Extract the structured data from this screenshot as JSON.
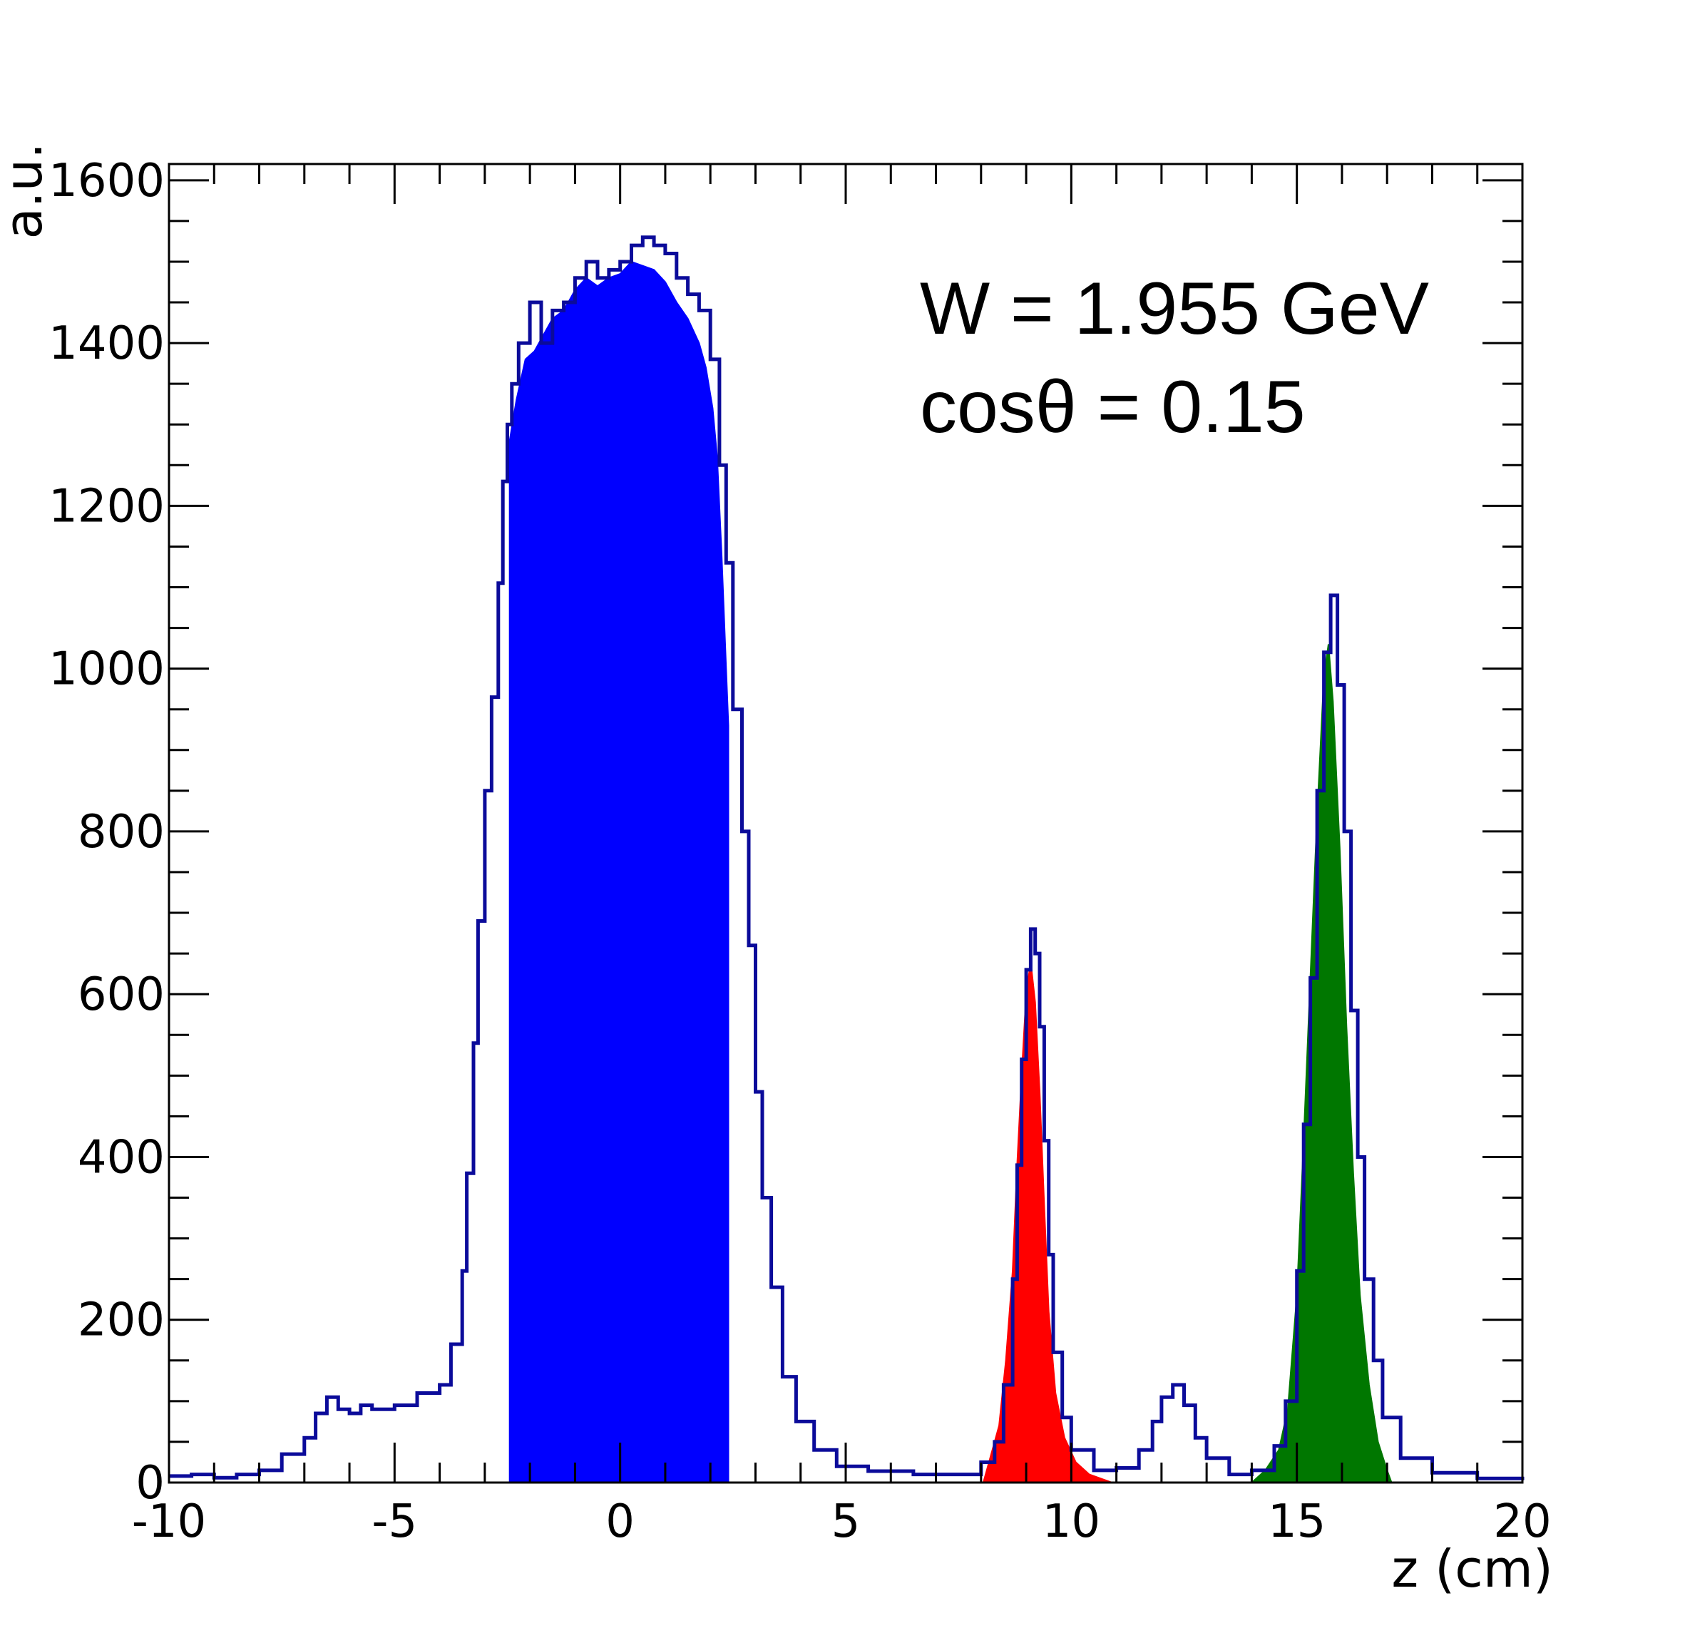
{
  "chart_data": {
    "type": "histogram",
    "xlabel": "z (cm)",
    "ylabel": "a.u.",
    "xlim": [
      -10,
      20
    ],
    "ylim": [
      0,
      1620
    ],
    "x_ticks": [
      -10,
      -5,
      0,
      5,
      10,
      15,
      20
    ],
    "y_ticks": [
      0,
      200,
      400,
      600,
      800,
      1000,
      1200,
      1400,
      1600
    ],
    "annotations": [
      "W = 1.955 GeV",
      "cosθ = 0.15"
    ],
    "colors": {
      "outline": "#0b0b9a",
      "target_fill": "#0000ff",
      "foil1_fill": "#ff0000",
      "foil2_fill": "#007700"
    },
    "series": [
      {
        "key": "total",
        "style": "step-outline",
        "color": "#0b0b9a",
        "points": [
          [
            -10,
            8
          ],
          [
            -9.5,
            10
          ],
          [
            -9,
            6
          ],
          [
            -8.5,
            10
          ],
          [
            -8,
            15
          ],
          [
            -7.5,
            35
          ],
          [
            -7,
            55
          ],
          [
            -6.75,
            85
          ],
          [
            -6.5,
            105
          ],
          [
            -6.25,
            90
          ],
          [
            -6,
            85
          ],
          [
            -5.75,
            95
          ],
          [
            -5.5,
            90
          ],
          [
            -5,
            95
          ],
          [
            -4.5,
            110
          ],
          [
            -4,
            120
          ],
          [
            -3.75,
            170
          ],
          [
            -3.5,
            260
          ],
          [
            -3.4,
            380
          ],
          [
            -3.25,
            540
          ],
          [
            -3.15,
            690
          ],
          [
            -3.0,
            850
          ],
          [
            -2.85,
            965
          ],
          [
            -2.7,
            1105
          ],
          [
            -2.6,
            1230
          ],
          [
            -2.5,
            1300
          ],
          [
            -2.4,
            1350
          ],
          [
            -2.25,
            1400
          ],
          [
            -2.0,
            1450
          ],
          [
            -1.75,
            1400
          ],
          [
            -1.5,
            1440
          ],
          [
            -1.25,
            1450
          ],
          [
            -1.0,
            1480
          ],
          [
            -0.75,
            1500
          ],
          [
            -0.5,
            1480
          ],
          [
            -0.25,
            1490
          ],
          [
            0,
            1500
          ],
          [
            0.25,
            1520
          ],
          [
            0.5,
            1530
          ],
          [
            0.75,
            1520
          ],
          [
            1.0,
            1510
          ],
          [
            1.25,
            1480
          ],
          [
            1.5,
            1460
          ],
          [
            1.75,
            1440
          ],
          [
            2.0,
            1380
          ],
          [
            2.2,
            1250
          ],
          [
            2.35,
            1130
          ],
          [
            2.5,
            950
          ],
          [
            2.7,
            800
          ],
          [
            2.85,
            660
          ],
          [
            3.0,
            480
          ],
          [
            3.15,
            350
          ],
          [
            3.35,
            240
          ],
          [
            3.6,
            130
          ],
          [
            3.9,
            75
          ],
          [
            4.3,
            40
          ],
          [
            4.8,
            20
          ],
          [
            5.5,
            14
          ],
          [
            6.5,
            10
          ],
          [
            7.5,
            10
          ],
          [
            8,
            25
          ],
          [
            8.3,
            50
          ],
          [
            8.5,
            120
          ],
          [
            8.7,
            250
          ],
          [
            8.8,
            390
          ],
          [
            8.9,
            520
          ],
          [
            9.0,
            630
          ],
          [
            9.1,
            680
          ],
          [
            9.2,
            650
          ],
          [
            9.3,
            560
          ],
          [
            9.4,
            420
          ],
          [
            9.5,
            280
          ],
          [
            9.6,
            160
          ],
          [
            9.8,
            80
          ],
          [
            10.0,
            40
          ],
          [
            10.5,
            15
          ],
          [
            11,
            18
          ],
          [
            11.5,
            40
          ],
          [
            11.8,
            75
          ],
          [
            12.0,
            105
          ],
          [
            12.25,
            120
          ],
          [
            12.5,
            95
          ],
          [
            12.75,
            55
          ],
          [
            13.0,
            30
          ],
          [
            13.5,
            10
          ],
          [
            14,
            15
          ],
          [
            14.5,
            45
          ],
          [
            14.75,
            100
          ],
          [
            15.0,
            260
          ],
          [
            15.15,
            440
          ],
          [
            15.3,
            620
          ],
          [
            15.45,
            850
          ],
          [
            15.6,
            1020
          ],
          [
            15.75,
            1090
          ],
          [
            15.9,
            980
          ],
          [
            16.05,
            800
          ],
          [
            16.2,
            580
          ],
          [
            16.35,
            400
          ],
          [
            16.5,
            250
          ],
          [
            16.7,
            150
          ],
          [
            16.9,
            80
          ],
          [
            17.3,
            30
          ],
          [
            18,
            12
          ],
          [
            19,
            5
          ],
          [
            20,
            3
          ]
        ]
      },
      {
        "key": "target",
        "style": "filled",
        "color": "#0000ff",
        "points": [
          [
            -2.45,
            0
          ],
          [
            -2.45,
            1280
          ],
          [
            -2.3,
            1330
          ],
          [
            -2.1,
            1380
          ],
          [
            -1.9,
            1390
          ],
          [
            -1.7,
            1410
          ],
          [
            -1.5,
            1430
          ],
          [
            -1.25,
            1440
          ],
          [
            -1.0,
            1465
          ],
          [
            -0.75,
            1480
          ],
          [
            -0.5,
            1470
          ],
          [
            -0.25,
            1480
          ],
          [
            0,
            1485
          ],
          [
            0.25,
            1500
          ],
          [
            0.5,
            1495
          ],
          [
            0.75,
            1490
          ],
          [
            1.0,
            1475
          ],
          [
            1.25,
            1450
          ],
          [
            1.5,
            1430
          ],
          [
            1.75,
            1400
          ],
          [
            1.9,
            1370
          ],
          [
            2.05,
            1320
          ],
          [
            2.15,
            1260
          ],
          [
            2.25,
            1140
          ],
          [
            2.35,
            1000
          ],
          [
            2.4,
            930
          ],
          [
            2.4,
            0
          ]
        ]
      },
      {
        "key": "foil-1",
        "style": "filled",
        "color": "#ff0000",
        "points": [
          [
            8.05,
            0
          ],
          [
            8.2,
            30
          ],
          [
            8.4,
            70
          ],
          [
            8.55,
            150
          ],
          [
            8.7,
            260
          ],
          [
            8.8,
            390
          ],
          [
            8.9,
            500
          ],
          [
            9.0,
            600
          ],
          [
            9.1,
            640
          ],
          [
            9.2,
            590
          ],
          [
            9.3,
            480
          ],
          [
            9.4,
            340
          ],
          [
            9.5,
            210
          ],
          [
            9.65,
            110
          ],
          [
            9.85,
            55
          ],
          [
            10.1,
            25
          ],
          [
            10.4,
            10
          ],
          [
            10.9,
            0
          ]
        ]
      },
      {
        "key": "foil-2",
        "style": "filled",
        "color": "#007700",
        "points": [
          [
            14.0,
            0
          ],
          [
            14.3,
            15
          ],
          [
            14.6,
            40
          ],
          [
            14.8,
            90
          ],
          [
            15.0,
            230
          ],
          [
            15.15,
            420
          ],
          [
            15.3,
            620
          ],
          [
            15.45,
            820
          ],
          [
            15.6,
            990
          ],
          [
            15.7,
            1030
          ],
          [
            15.8,
            960
          ],
          [
            15.95,
            780
          ],
          [
            16.1,
            560
          ],
          [
            16.25,
            380
          ],
          [
            16.4,
            230
          ],
          [
            16.6,
            120
          ],
          [
            16.8,
            50
          ],
          [
            17.0,
            15
          ],
          [
            17.1,
            0
          ]
        ]
      }
    ]
  }
}
